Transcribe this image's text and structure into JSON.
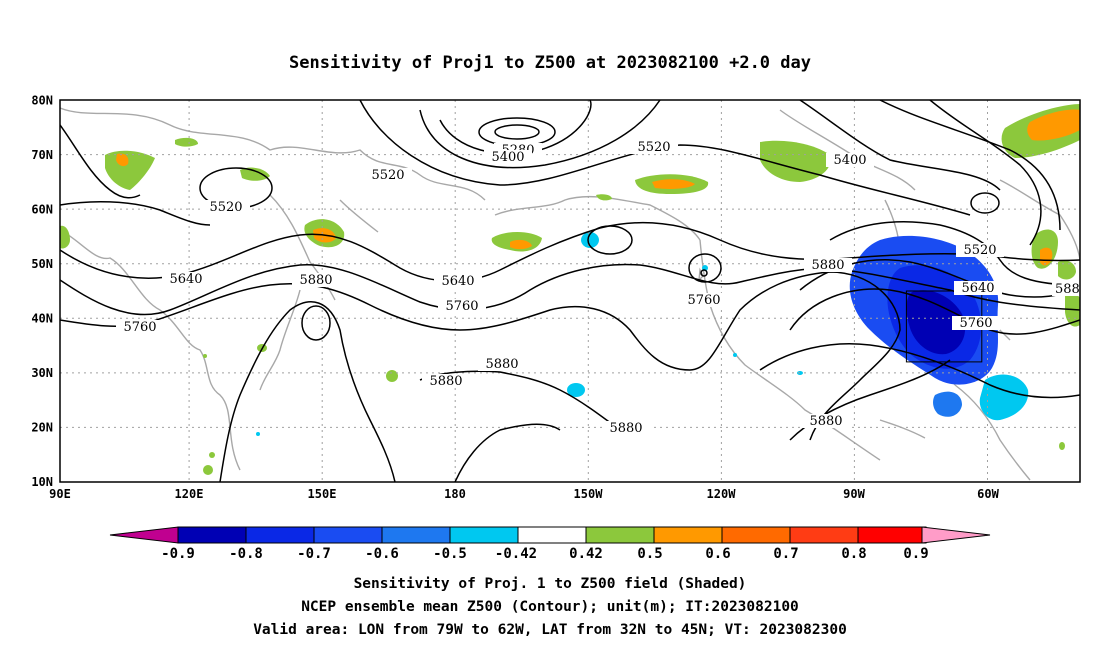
{
  "title": "Sensitivity of Proj1 to Z500 at 2023082100 +2.0 day",
  "lat_ticks": [
    "80N",
    "70N",
    "60N",
    "50N",
    "40N",
    "30N",
    "20N",
    "10N"
  ],
  "lon_ticks": [
    "90E",
    "120E",
    "150E",
    "180",
    "150W",
    "120W",
    "90W",
    "60W"
  ],
  "colorbar": {
    "labels": [
      "-0.9",
      "-0.8",
      "-0.7",
      "-0.6",
      "-0.5",
      "-0.42",
      "0.42",
      "0.5",
      "0.6",
      "0.7",
      "0.8",
      "0.9"
    ],
    "colors": [
      "#c00090",
      "#0000b4",
      "#0a28e6",
      "#1a4cf2",
      "#1e78f0",
      "#00c8f0",
      "#ffffff",
      "#8cc83c",
      "#ff9900",
      "#ff6a00",
      "#ff3c14",
      "#ff0000",
      "#ff9cc8"
    ]
  },
  "contour_labels": [
    "5280",
    "5400",
    "5520",
    "5400",
    "5520",
    "5520",
    "5520",
    "5640",
    "5640",
    "5640",
    "5760",
    "5760",
    "5760",
    "5760",
    "5880",
    "5880",
    "5880",
    "5880",
    "5880",
    "5880",
    "588"
  ],
  "caption": [
    "Sensitivity of Proj. 1 to Z500 field (Shaded)",
    "NCEP ensemble mean Z500 (Contour); unit(m); IT:2023082100",
    "Valid area: LON from 79W to 62W, LAT from 32N to 45N; VT: 2023082300"
  ],
  "map": {
    "extent": {
      "lon_min": 90,
      "lon_max": 310,
      "lat_min": 10,
      "lat_max": 80
    },
    "valid_area": {
      "lon_min": 281,
      "lon_max": 298,
      "lat_min": 32,
      "lat_max": 45
    }
  }
}
